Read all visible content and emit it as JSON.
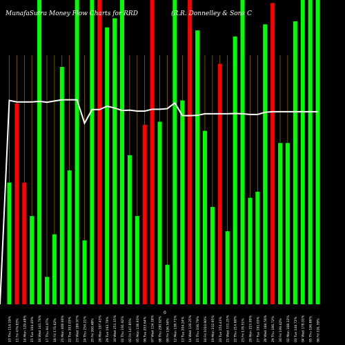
{
  "header": {
    "title": "MunafaSutra  Money Flow  Charts for RRD",
    "company": "(R.R. Donnelley & Sons C"
  },
  "colors": {
    "background": "#000000",
    "up_bar": "#00ff00",
    "down_bar": "#ff0000",
    "grid_line": "#b8860b",
    "line": "#ffffff"
  },
  "chart_data": {
    "type": "bar",
    "title": "MunafaSutra  Money Flow  Charts for RRD",
    "subtitle": "(R.R. Donnelley & Sons C",
    "zero_label": "0",
    "ylim": [
      0,
      100
    ],
    "grid": true,
    "categories": [
      "10 Thu 116.19%",
      "11 Fri 476.83%",
      "14 Mon 129.48%",
      "15 Tue 104.40%",
      "16 Wed 141.76%",
      "17 Thu 94.07%",
      "18 Fri 176.62%",
      "21 Mon 408.00%",
      "22 Tue 303.03%",
      "23 Wed 189.97%",
      "24 Thu 254.21%",
      "25 Fri 260.48%",
      "28 Mon 197.43%",
      "29 Tue 193.79%",
      "30 Wed 251.15%",
      "01 Thu 191.92%",
      "02 Fri 147.85%",
      "05 Mon 138.93%",
      "06 Tue 253.64%",
      "07 Wed 134.18%",
      "08 Thu 290.92%",
      "09 Fri 196.56%",
      "12 Mon 138.71%",
      "13 Tue 204.24%",
      "14 Wed 130.25%",
      "15 Thu 336.79%",
      "16 Fri 1010.90%",
      "19 Mon 232.95%",
      "20 Tue 154.43%",
      "21 Wed 331.25%",
      "22 Thu 214.60%",
      "23 Fri 178.51%",
      "26 Mon 215.00%",
      "27 Tue 191.03%",
      "28 Wed 184.56%",
      "29 Thu 186.72%",
      "30 Fri 199.42%",
      "02 Mon 168.32%",
      "03 Tue 146.72%",
      "04 Wed 178.01%",
      "05 Thu 196.88%",
      "06 Fri 191.39%"
    ],
    "colors": [
      "green",
      "red",
      "red",
      "green",
      "green",
      "green",
      "green",
      "green",
      "green",
      "green",
      "green",
      "green",
      "red",
      "green",
      "green",
      "green",
      "green",
      "green",
      "red",
      "red",
      "green",
      "green",
      "green",
      "green",
      "red",
      "green",
      "green",
      "green",
      "red",
      "green",
      "green",
      "green",
      "green",
      "green",
      "green",
      "red",
      "green",
      "green",
      "green",
      "green",
      "green",
      "green"
    ],
    "series": [
      {
        "type": "bar",
        "values": [
          40,
          66,
          40,
          29,
          100,
          9,
          23,
          78,
          44,
          100,
          21,
          100,
          100,
          91,
          94,
          100,
          49,
          29,
          59,
          100,
          60,
          13,
          100,
          67,
          100,
          90,
          57,
          32,
          79,
          24,
          88,
          100,
          35,
          37,
          92,
          99,
          53,
          53,
          93,
          100,
          100,
          100
        ]
      },
      {
        "type": "line",
        "values": [
          67,
          66.5,
          66.5,
          66.5,
          66.7,
          66.4,
          66.8,
          67.2,
          67.2,
          67.2,
          59.5,
          64,
          64,
          65.1,
          64.5,
          63.7,
          63.8,
          63.5,
          63.5,
          64.1,
          64.1,
          64.3,
          66.2,
          62,
          62,
          62.1,
          62.6,
          62.6,
          62.6,
          62.6,
          62.7,
          62.6,
          62.4,
          62.4,
          63.1,
          63.3,
          63.3,
          63.3,
          63.3,
          63.3,
          63.3,
          63.3
        ]
      }
    ]
  }
}
